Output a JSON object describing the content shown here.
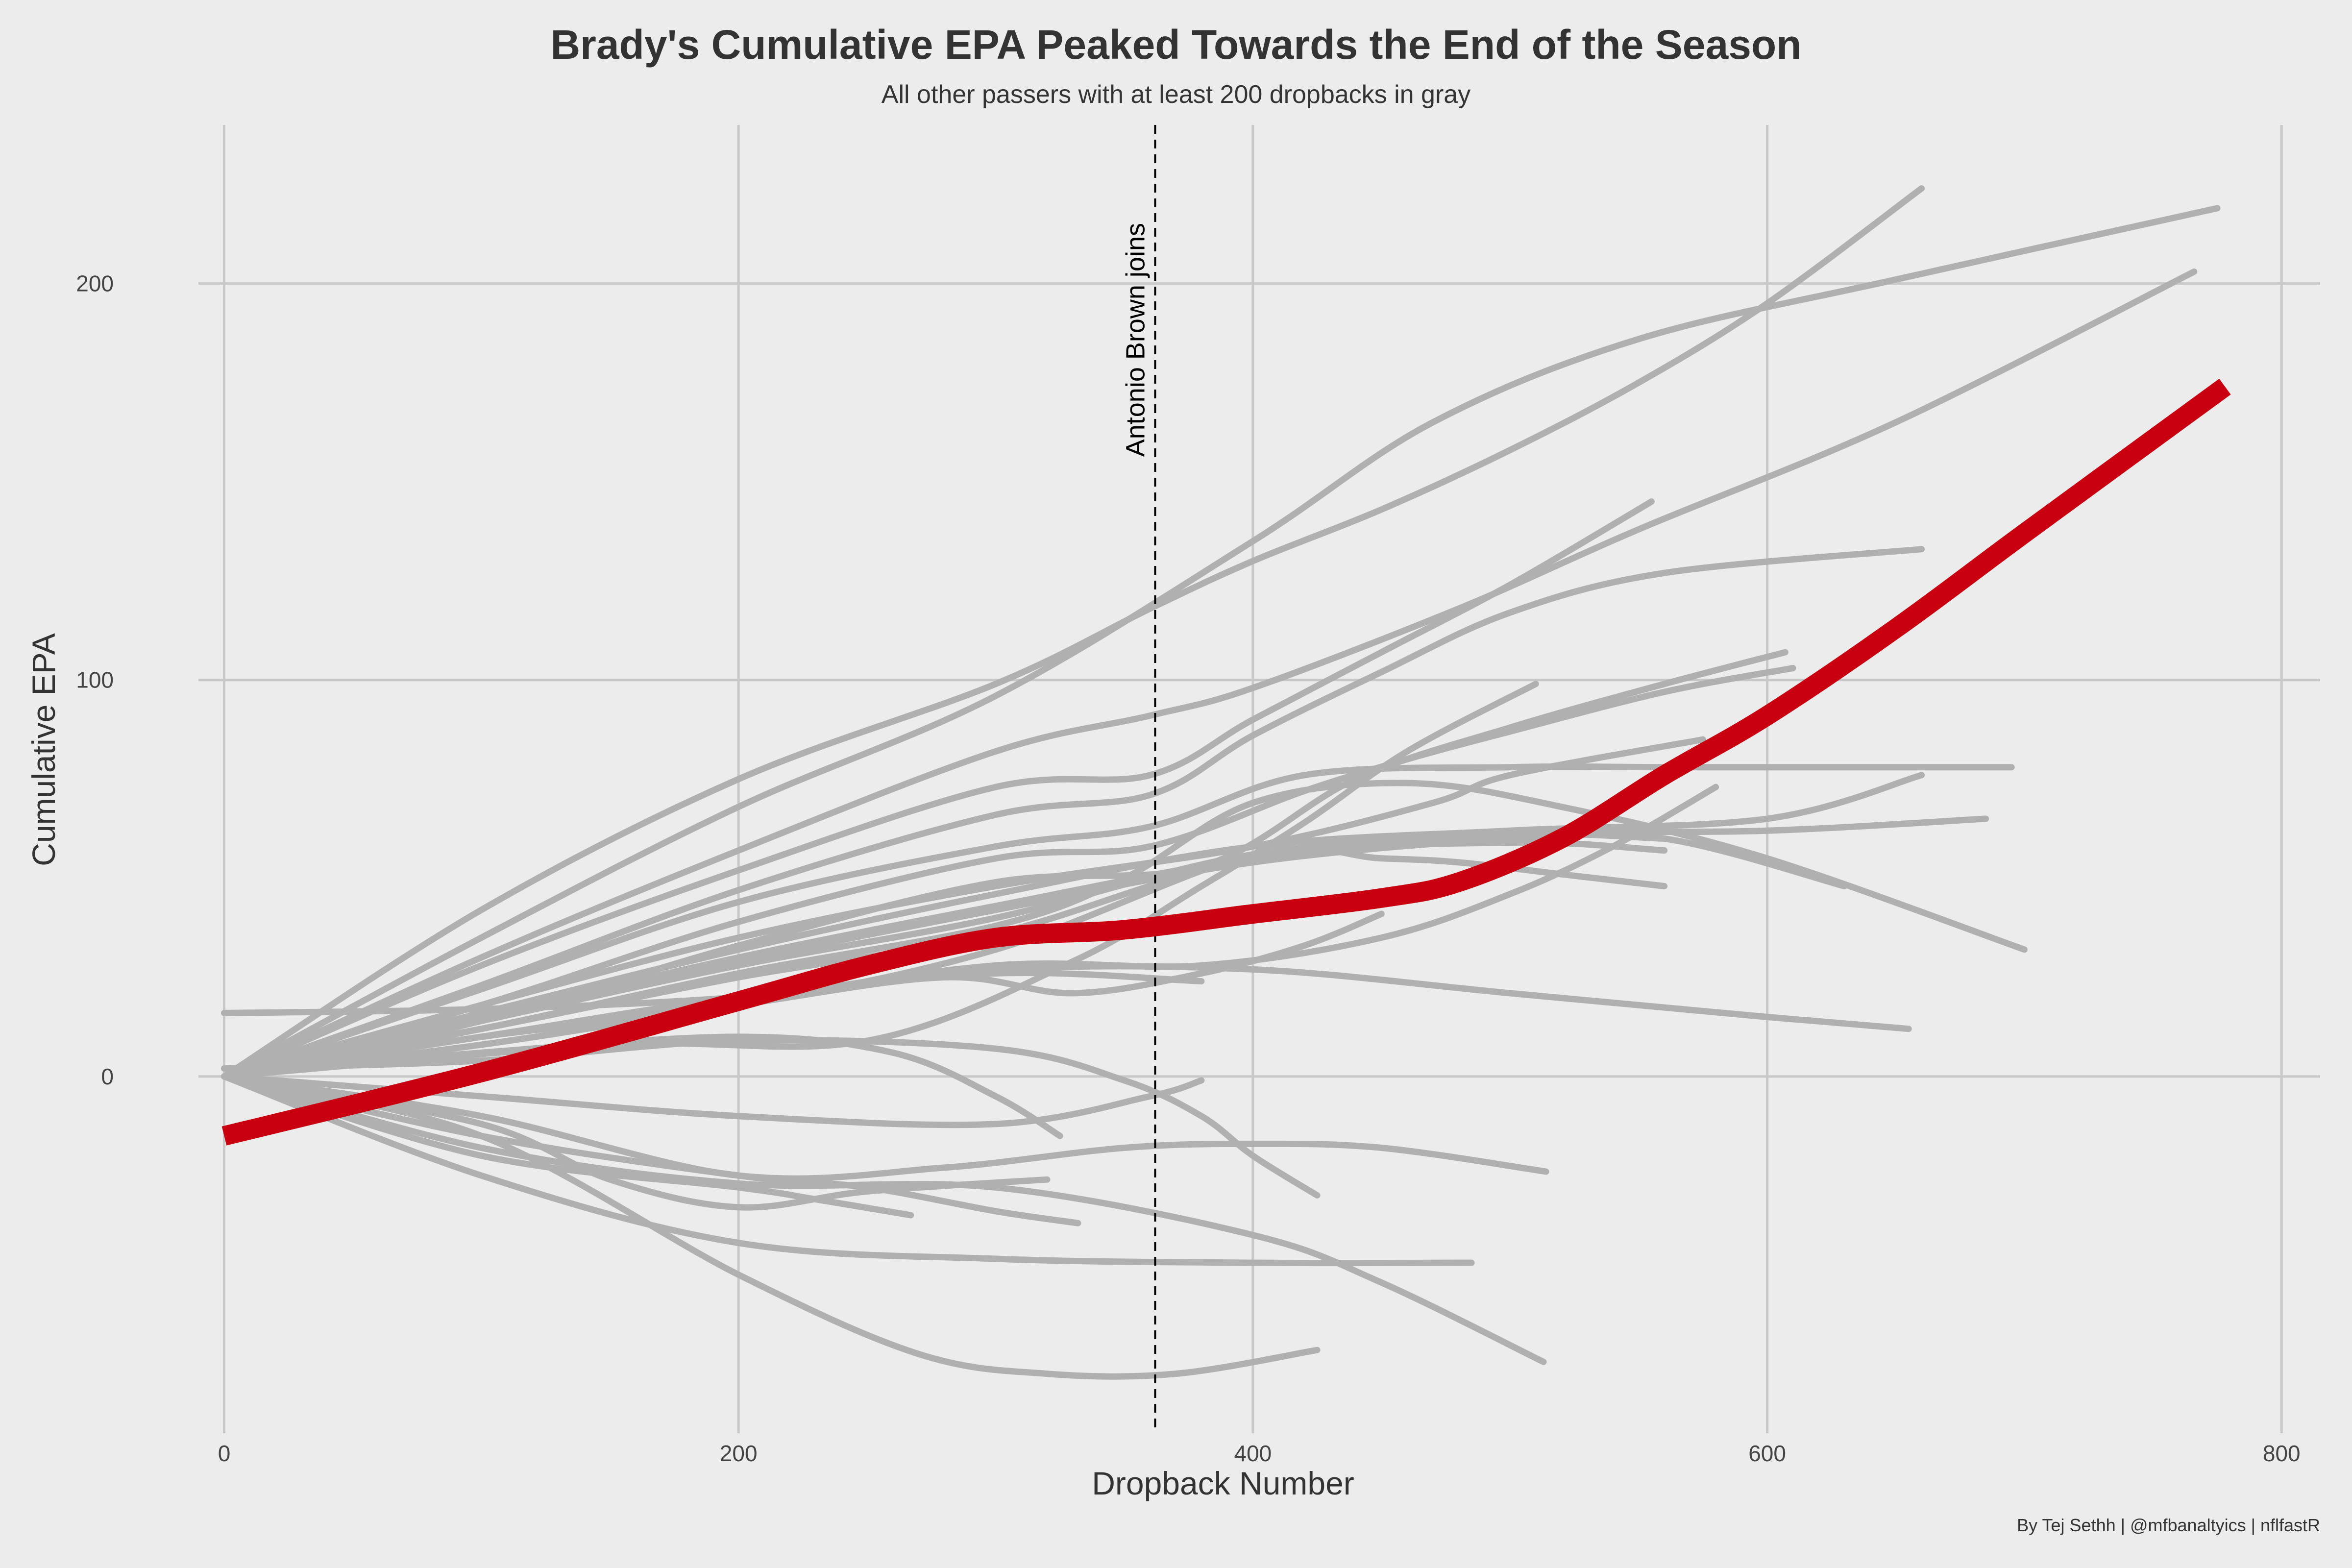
{
  "chart_data": {
    "type": "line",
    "title": "Brady's Cumulative EPA Peaked Towards the End of the Season",
    "subtitle": "All other passers with at least 200 dropbacks in gray",
    "xlabel": "Dropback Number",
    "ylabel": "Cumulative EPA",
    "caption": "By Tej Sethh | @mfbanaltyics | nflfastR",
    "xlim": [
      -10,
      815
    ],
    "ylim": [
      -90,
      240
    ],
    "xticks": [
      0,
      200,
      400,
      600,
      800
    ],
    "yticks": [
      0,
      100,
      200
    ],
    "grid": true,
    "annotation": {
      "label": "Antonio Brown joins",
      "x": 362
    },
    "colors": {
      "background": "#ececec",
      "grid": "#c8c8c8",
      "others": "#b0b0b0",
      "highlight": "#c8000f"
    },
    "highlight_series": {
      "x": [
        0,
        100,
        200,
        250,
        300,
        350,
        400,
        450,
        480,
        520,
        560,
        600,
        650,
        700,
        778
      ],
      "y": [
        -15,
        1,
        19,
        28,
        35,
        37,
        41,
        45,
        49,
        60,
        76,
        91,
        113,
        137,
        174
      ]
    },
    "other_series": [
      {
        "x": [
          0,
          100,
          200,
          300,
          360,
          400,
          450,
          500,
          550,
          600,
          660
        ],
        "y": [
          0,
          42,
          75,
          99,
          118,
          130,
          143,
          158,
          175,
          195,
          224
        ]
      },
      {
        "x": [
          0,
          100,
          200,
          300,
          400,
          470,
          550,
          650,
          775
        ],
        "y": [
          0,
          35,
          68,
          96,
          135,
          165,
          186,
          201,
          219
        ]
      },
      {
        "x": [
          0,
          100,
          200,
          300,
          360,
          400,
          480,
          550,
          650,
          766
        ],
        "y": [
          0,
          30,
          57,
          82,
          91,
          98,
          118,
          138,
          165,
          203
        ]
      },
      {
        "x": [
          0,
          100,
          200,
          300,
          360,
          400,
          450,
          500,
          555
        ],
        "y": [
          0,
          28,
          52,
          73,
          76,
          90,
          107,
          124,
          145
        ]
      },
      {
        "x": [
          0,
          100,
          200,
          300,
          360,
          400,
          450,
          500,
          560,
          660
        ],
        "y": [
          0,
          23,
          47,
          66,
          71,
          86,
          102,
          117,
          127,
          133
        ]
      },
      {
        "x": [
          0,
          100,
          200,
          300,
          360,
          420,
          460,
          500,
          560,
          610
        ],
        "y": [
          0,
          18,
          39,
          55,
          58,
          72,
          80,
          87,
          97,
          103
        ]
      },
      {
        "x": [
          0,
          100,
          200,
          300,
          380,
          440,
          500,
          560,
          607
        ],
        "y": [
          0,
          14,
          33,
          49,
          53,
          75,
          88,
          99,
          107
        ]
      },
      {
        "x": [
          0,
          150,
          250,
          330,
          380,
          420,
          460,
          510
        ],
        "y": [
          0,
          8,
          9,
          29,
          48,
          64,
          82,
          99
        ]
      },
      {
        "x": [
          0,
          100,
          200,
          300,
          360,
          420,
          500,
          560,
          600,
          695
        ],
        "y": [
          0,
          22,
          44,
          58,
          63,
          76,
          78,
          78,
          78,
          78
        ]
      },
      {
        "x": [
          0,
          100,
          200,
          300,
          400,
          470,
          500,
          575
        ],
        "y": [
          0,
          18,
          35,
          48,
          58,
          69,
          76,
          85
        ]
      },
      {
        "x": [
          0,
          100,
          200,
          300,
          400,
          500,
          600,
          660
        ],
        "y": [
          0,
          16,
          32,
          46,
          58,
          62,
          65,
          76
        ]
      },
      {
        "x": [
          0,
          100,
          200,
          300,
          400,
          500,
          600,
          685
        ],
        "y": [
          0,
          15,
          30,
          43,
          55,
          61,
          62,
          65
        ]
      },
      {
        "x": [
          0,
          100,
          200,
          300,
          350,
          400,
          460,
          520,
          600,
          700
        ],
        "y": [
          0,
          12,
          26,
          38,
          50,
          69,
          74,
          68,
          55,
          32
        ]
      },
      {
        "x": [
          0,
          100,
          200,
          300,
          400,
          500,
          560,
          630
        ],
        "y": [
          0,
          14,
          29,
          42,
          54,
          60,
          60,
          48
        ]
      },
      {
        "x": [
          0,
          100,
          200,
          300,
          400,
          500,
          560
        ],
        "y": [
          0,
          14,
          28,
          40,
          56,
          61,
          60
        ]
      },
      {
        "x": [
          0,
          100,
          200,
          300,
          400,
          500,
          560
        ],
        "y": [
          0,
          12,
          25,
          36,
          55,
          59,
          57
        ]
      },
      {
        "x": [
          0,
          100,
          200,
          300,
          380,
          450,
          500,
          540,
          580
        ],
        "y": [
          0,
          10,
          19,
          28,
          28,
          35,
          46,
          58,
          73
        ]
      },
      {
        "x": [
          0,
          100,
          200,
          300,
          400,
          450,
          480,
          520,
          560
        ],
        "y": [
          0,
          10,
          18,
          32,
          56,
          55,
          54,
          51,
          48
        ]
      },
      {
        "x": [
          0,
          100,
          200,
          280,
          330,
          380,
          420,
          450
        ],
        "y": [
          0,
          8,
          18,
          25,
          21,
          26,
          33,
          41
        ]
      },
      {
        "x": [
          0,
          100,
          200,
          300,
          380
        ],
        "y": [
          0,
          10,
          20,
          26,
          24
        ]
      },
      {
        "x": [
          0,
          100,
          200,
          300,
          400,
          500,
          600,
          655
        ],
        "y": [
          16,
          17,
          20,
          27,
          27,
          21,
          15,
          12
        ]
      },
      {
        "x": [
          0,
          100,
          200,
          300,
          360,
          380
        ],
        "y": [
          0,
          -5,
          -10,
          -12,
          -5,
          -1
        ]
      },
      {
        "x": [
          0,
          100,
          200,
          260,
          300,
          325
        ],
        "y": [
          0,
          6,
          10,
          6,
          -5,
          -15
        ]
      },
      {
        "x": [
          0,
          100,
          200,
          300,
          350,
          380,
          400,
          425
        ],
        "y": [
          2,
          4,
          9,
          7,
          -1,
          -10,
          -20,
          -30
        ]
      },
      {
        "x": [
          0,
          100,
          200,
          280,
          350,
          400,
          450,
          514
        ],
        "y": [
          0,
          -10,
          -25,
          -23,
          -18,
          -17,
          -18,
          -24
        ]
      },
      {
        "x": [
          0,
          100,
          200,
          250,
          300,
          332
        ],
        "y": [
          0,
          -15,
          -25,
          -28,
          -34,
          -37
        ]
      },
      {
        "x": [
          0,
          100,
          200,
          230,
          267
        ],
        "y": [
          0,
          -20,
          -28,
          -31,
          -35
        ]
      },
      {
        "x": [
          0,
          100,
          200,
          300,
          400,
          485
        ],
        "y": [
          0,
          -25,
          -42,
          -46,
          -47,
          -47
        ]
      },
      {
        "x": [
          0,
          100,
          200,
          300,
          400,
          450,
          513
        ],
        "y": [
          0,
          -18,
          -27,
          -28,
          -40,
          -52,
          -72
        ]
      },
      {
        "x": [
          0,
          100,
          200,
          270,
          320,
          370,
          425
        ],
        "y": [
          0,
          -15,
          -50,
          -70,
          -75,
          -75,
          -69
        ]
      },
      {
        "x": [
          0,
          100,
          150,
          200,
          250,
          320
        ],
        "y": [
          0,
          -12,
          -26,
          -33,
          -29,
          -26
        ]
      }
    ]
  }
}
